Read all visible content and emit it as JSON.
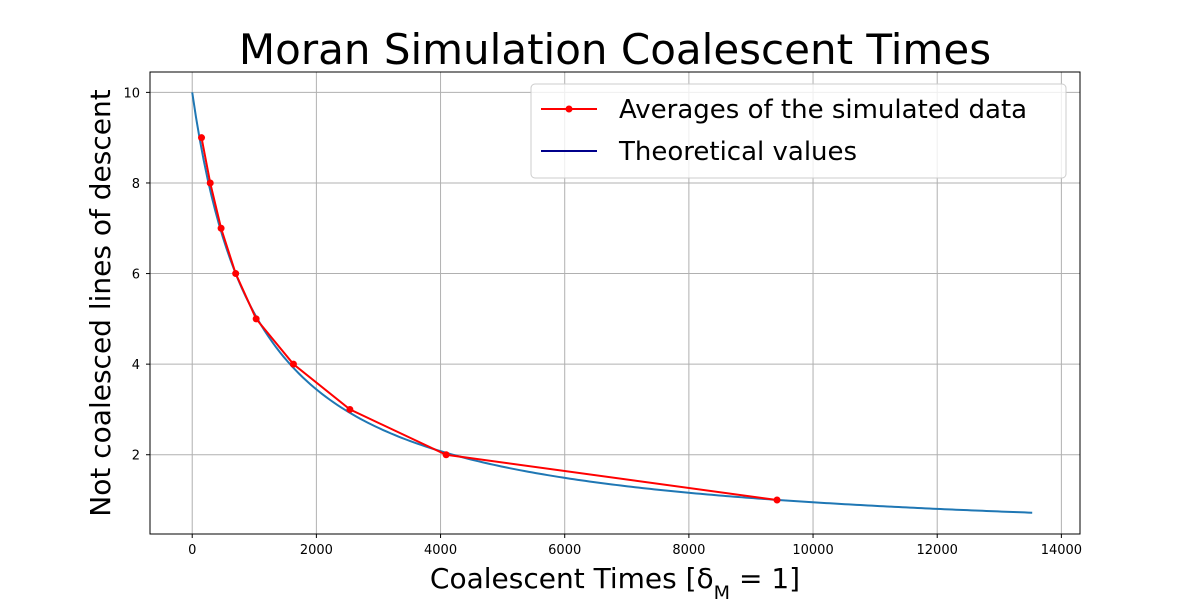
{
  "chart_data": {
    "type": "line",
    "title": "Moran Simulation Coalescent Times",
    "xlabel": "Coalescent Times [δ_M = 1]",
    "ylabel": "Not coalesced lines of descent",
    "xlim": [
      -680,
      14300
    ],
    "ylim": [
      0.25,
      10.45
    ],
    "xticks": [
      0,
      2000,
      4000,
      6000,
      8000,
      10000,
      12000,
      14000
    ],
    "yticks": [
      2,
      4,
      6,
      8,
      10
    ],
    "grid": true,
    "legend_position": "top-right",
    "legend": [
      {
        "label": "Averages of the simulated data",
        "color": "#ff0000",
        "marker": "circle"
      },
      {
        "label": "Theoretical values",
        "color": "#00008b",
        "marker": "none"
      }
    ],
    "series": [
      {
        "name": "Averages of the simulated data",
        "color": "#ff0000",
        "marker": "circle",
        "x": [
          150,
          290,
          465,
          700,
          1030,
          1630,
          2540,
          4090,
          9420
        ],
        "y": [
          9,
          8,
          7,
          6,
          5,
          4,
          3,
          2,
          1
        ]
      },
      {
        "name": "",
        "color": "#1f77b4",
        "marker": "none",
        "function": "y = 10 / (1 + x / 1050)",
        "x_range": [
          0,
          13530
        ]
      }
    ]
  }
}
